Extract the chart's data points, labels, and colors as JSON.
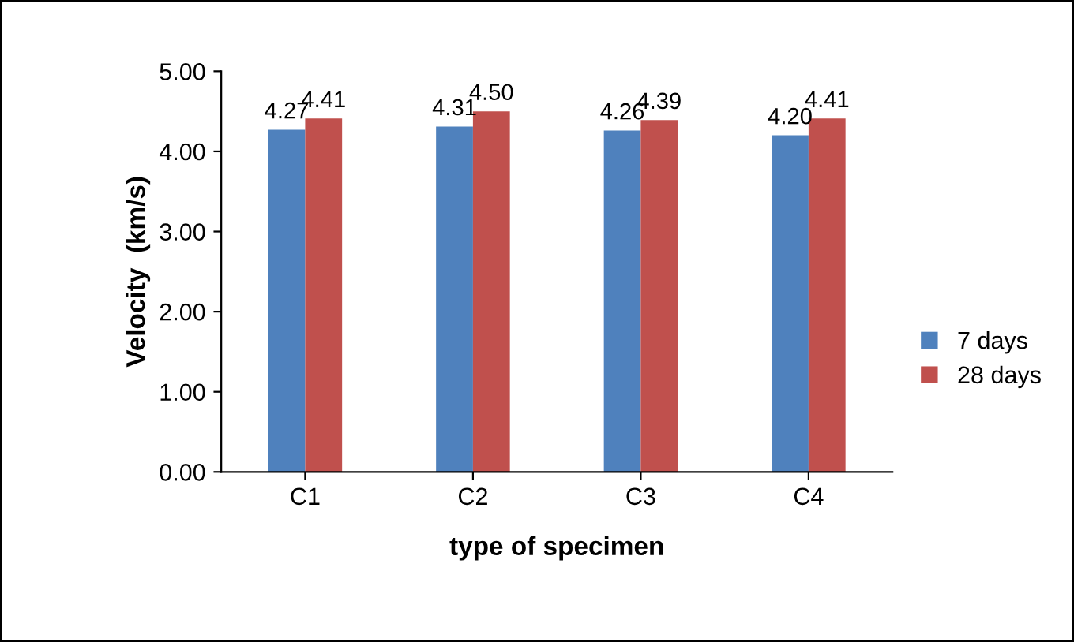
{
  "chart_data": {
    "type": "bar",
    "xlabel": "type of specimen",
    "ylabel": "Velocity  (km/s)",
    "categories": [
      "C1",
      "C2",
      "C3",
      "C4"
    ],
    "series": [
      {
        "name": "7 days",
        "color": "#4f81bd",
        "values": [
          4.27,
          4.31,
          4.26,
          4.2
        ],
        "value_labels": [
          "4.27",
          "4.31",
          "4.26",
          "4.20"
        ]
      },
      {
        "name": "28 days",
        "color": "#c0504d",
        "values": [
          4.41,
          4.5,
          4.39,
          4.41
        ],
        "value_labels": [
          "4.41",
          "4.50",
          "4.39",
          "4.41"
        ]
      }
    ],
    "ylim": [
      0,
      5
    ],
    "yticks": [
      {
        "value": 0,
        "label": "0.00"
      },
      {
        "value": 1,
        "label": "1.00"
      },
      {
        "value": 2,
        "label": "2.00"
      },
      {
        "value": 3,
        "label": "3.00"
      },
      {
        "value": 4,
        "label": "4.00"
      },
      {
        "value": 5,
        "label": "5.00"
      }
    ],
    "grid": false,
    "legend": "right"
  }
}
